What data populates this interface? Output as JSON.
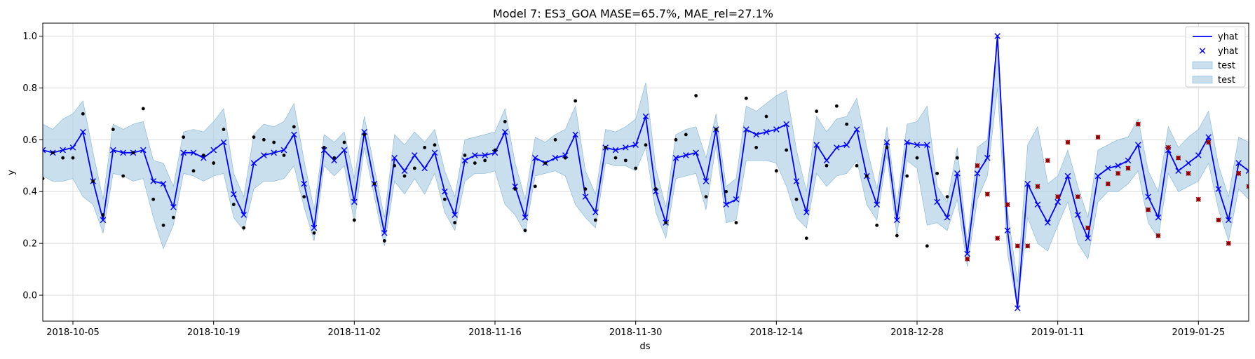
{
  "chart_data": {
    "type": "line",
    "title": "Model 7: ES3_GOA MASE=65.7%, MAE_rel=27.1%",
    "xlabel": "ds",
    "ylabel": "y",
    "x_start": "2018-10-02",
    "xlim": [
      "2018-10-02",
      "2019-01-30"
    ],
    "ylim": [
      -0.1,
      1.05
    ],
    "x_ticks": [
      "2018-10-05",
      "2018-10-19",
      "2018-11-02",
      "2018-11-16",
      "2018-11-30",
      "2018-12-14",
      "2018-12-28",
      "2019-01-11",
      "2019-01-25"
    ],
    "y_ticks": [
      "0.0",
      "0.2",
      "0.4",
      "0.6",
      "0.8",
      "1.0"
    ],
    "grid": true,
    "legend": {
      "position": "top-right",
      "entries": [
        {
          "label": "yhat",
          "kind": "line",
          "color": "#0000ff"
        },
        {
          "label": "yhat",
          "kind": "marker",
          "color": "#0000ff"
        },
        {
          "label": "test",
          "kind": "band",
          "color": "#a9cce3"
        },
        {
          "label": "test",
          "kind": "band",
          "color": "#a9cce3"
        }
      ]
    },
    "colors": {
      "forecast": "#0000ff",
      "band": "#a9cce3",
      "band_edge": "#7fb3d5",
      "train_points": "#000000",
      "test_points": "#cc0000",
      "grid": "#dcdcdc"
    },
    "test_start_index": 92,
    "yhat": [
      0.56,
      0.55,
      0.56,
      0.57,
      0.63,
      0.44,
      0.29,
      0.56,
      0.55,
      0.55,
      0.56,
      0.44,
      0.43,
      0.34,
      0.55,
      0.55,
      0.53,
      0.56,
      0.59,
      0.39,
      0.31,
      0.51,
      0.54,
      0.55,
      0.56,
      0.62,
      0.43,
      0.26,
      0.56,
      0.52,
      0.56,
      0.36,
      0.63,
      0.43,
      0.24,
      0.53,
      0.48,
      0.54,
      0.49,
      0.55,
      0.4,
      0.31,
      0.52,
      0.54,
      0.54,
      0.55,
      0.63,
      0.42,
      0.3,
      0.53,
      0.51,
      0.53,
      0.54,
      0.62,
      0.38,
      0.32,
      0.57,
      0.56,
      0.57,
      0.58,
      0.69,
      0.4,
      0.28,
      0.53,
      0.54,
      0.55,
      0.44,
      0.64,
      0.35,
      0.37,
      0.64,
      0.62,
      0.63,
      0.64,
      0.66,
      0.44,
      0.32,
      0.58,
      0.52,
      0.57,
      0.58,
      0.64,
      0.46,
      0.35,
      0.59,
      0.29,
      0.59,
      0.58,
      0.58,
      0.36,
      0.3,
      0.47,
      0.16,
      0.47,
      0.53,
      1.0,
      0.25,
      -0.05,
      0.43,
      0.35,
      0.28,
      0.36,
      0.46,
      0.31,
      0.22,
      0.46,
      0.49,
      0.5,
      0.52,
      0.58,
      0.38,
      0.3,
      0.56,
      0.48,
      0.51,
      0.54,
      0.61,
      0.41,
      0.29,
      0.51,
      0.48,
      0.46,
      0.44
    ],
    "upper": [
      0.66,
      0.64,
      0.68,
      0.7,
      0.75,
      0.55,
      0.37,
      0.66,
      0.64,
      0.66,
      0.67,
      0.52,
      0.51,
      0.42,
      0.63,
      0.64,
      0.63,
      0.67,
      0.72,
      0.47,
      0.38,
      0.62,
      0.66,
      0.65,
      0.67,
      0.74,
      0.52,
      0.33,
      0.62,
      0.59,
      0.63,
      0.45,
      0.69,
      0.49,
      0.3,
      0.62,
      0.58,
      0.63,
      0.59,
      0.64,
      0.48,
      0.38,
      0.6,
      0.61,
      0.62,
      0.63,
      0.72,
      0.51,
      0.37,
      0.61,
      0.59,
      0.62,
      0.64,
      0.73,
      0.48,
      0.39,
      0.64,
      0.63,
      0.65,
      0.68,
      0.82,
      0.49,
      0.34,
      0.62,
      0.64,
      0.65,
      0.53,
      0.7,
      0.42,
      0.45,
      0.73,
      0.71,
      0.74,
      0.77,
      0.79,
      0.56,
      0.4,
      0.69,
      0.63,
      0.68,
      0.69,
      0.76,
      0.57,
      0.41,
      0.65,
      0.35,
      0.66,
      0.67,
      0.73,
      0.42,
      0.36,
      0.57,
      0.2,
      0.57,
      0.6,
      1.0,
      0.33,
      0.05,
      0.58,
      0.65,
      0.43,
      0.46,
      0.56,
      0.42,
      0.3,
      0.56,
      0.58,
      0.6,
      0.61,
      0.68,
      0.48,
      0.4,
      0.65,
      0.57,
      0.61,
      0.64,
      0.71,
      0.5,
      0.38,
      0.61,
      0.59,
      0.58,
      0.57
    ],
    "lower": [
      0.46,
      0.44,
      0.44,
      0.45,
      0.38,
      0.35,
      0.24,
      0.47,
      0.46,
      0.44,
      0.45,
      0.3,
      0.18,
      0.27,
      0.47,
      0.46,
      0.44,
      0.46,
      0.47,
      0.3,
      0.25,
      0.41,
      0.44,
      0.44,
      0.45,
      0.5,
      0.34,
      0.21,
      0.5,
      0.46,
      0.5,
      0.28,
      0.57,
      0.38,
      0.19,
      0.44,
      0.39,
      0.45,
      0.39,
      0.47,
      0.32,
      0.25,
      0.44,
      0.47,
      0.47,
      0.48,
      0.35,
      0.31,
      0.24,
      0.46,
      0.47,
      0.48,
      0.46,
      0.35,
      0.3,
      0.26,
      0.51,
      0.5,
      0.5,
      0.48,
      0.57,
      0.32,
      0.22,
      0.45,
      0.46,
      0.47,
      0.33,
      0.58,
      0.28,
      0.29,
      0.52,
      0.52,
      0.52,
      0.51,
      0.42,
      0.3,
      0.26,
      0.47,
      0.42,
      0.46,
      0.47,
      0.52,
      0.35,
      0.29,
      0.54,
      0.23,
      0.52,
      0.49,
      0.27,
      0.28,
      0.25,
      0.37,
      0.11,
      0.37,
      0.46,
      0.8,
      0.16,
      -0.05,
      0.3,
      0.2,
      0.17,
      0.27,
      0.36,
      0.2,
      0.14,
      0.36,
      0.4,
      0.4,
      0.43,
      0.48,
      0.28,
      0.22,
      0.47,
      0.4,
      0.42,
      0.44,
      0.51,
      0.33,
      0.21,
      0.41,
      0.37,
      0.35,
      0.3
    ],
    "actual": [
      0.45,
      0.55,
      0.53,
      0.53,
      0.7,
      0.44,
      0.31,
      0.64,
      0.46,
      0.55,
      0.72,
      0.37,
      0.27,
      0.3,
      0.61,
      0.48,
      0.54,
      0.51,
      0.64,
      0.35,
      0.26,
      0.61,
      0.6,
      0.59,
      0.54,
      0.65,
      0.38,
      0.24,
      0.57,
      0.53,
      0.59,
      0.29,
      0.62,
      0.43,
      0.21,
      0.5,
      0.46,
      0.49,
      0.57,
      0.58,
      0.37,
      0.28,
      0.54,
      0.51,
      0.52,
      0.56,
      0.67,
      0.41,
      0.25,
      0.42,
      0.51,
      0.6,
      0.53,
      0.75,
      0.41,
      0.29,
      0.57,
      0.53,
      0.52,
      0.49,
      0.58,
      0.41,
      0.28,
      0.6,
      0.62,
      0.77,
      0.38,
      0.64,
      0.4,
      0.28,
      0.76,
      0.57,
      0.69,
      0.48,
      0.56,
      0.37,
      0.22,
      0.71,
      0.5,
      0.73,
      0.66,
      0.5,
      0.46,
      0.27,
      0.57,
      0.23,
      0.46,
      0.53,
      0.19,
      0.47,
      0.38,
      0.53,
      0.14,
      0.5,
      0.39,
      0.22,
      0.35,
      0.19,
      0.19,
      0.42,
      0.52,
      0.38,
      0.59,
      0.38,
      0.26,
      0.61,
      0.43,
      0.47,
      0.49,
      0.66,
      0.33,
      0.23,
      0.57,
      0.53,
      0.47,
      0.37,
      0.59,
      0.29,
      0.2,
      0.47,
      0.42,
      0.29,
      0.47
    ]
  }
}
